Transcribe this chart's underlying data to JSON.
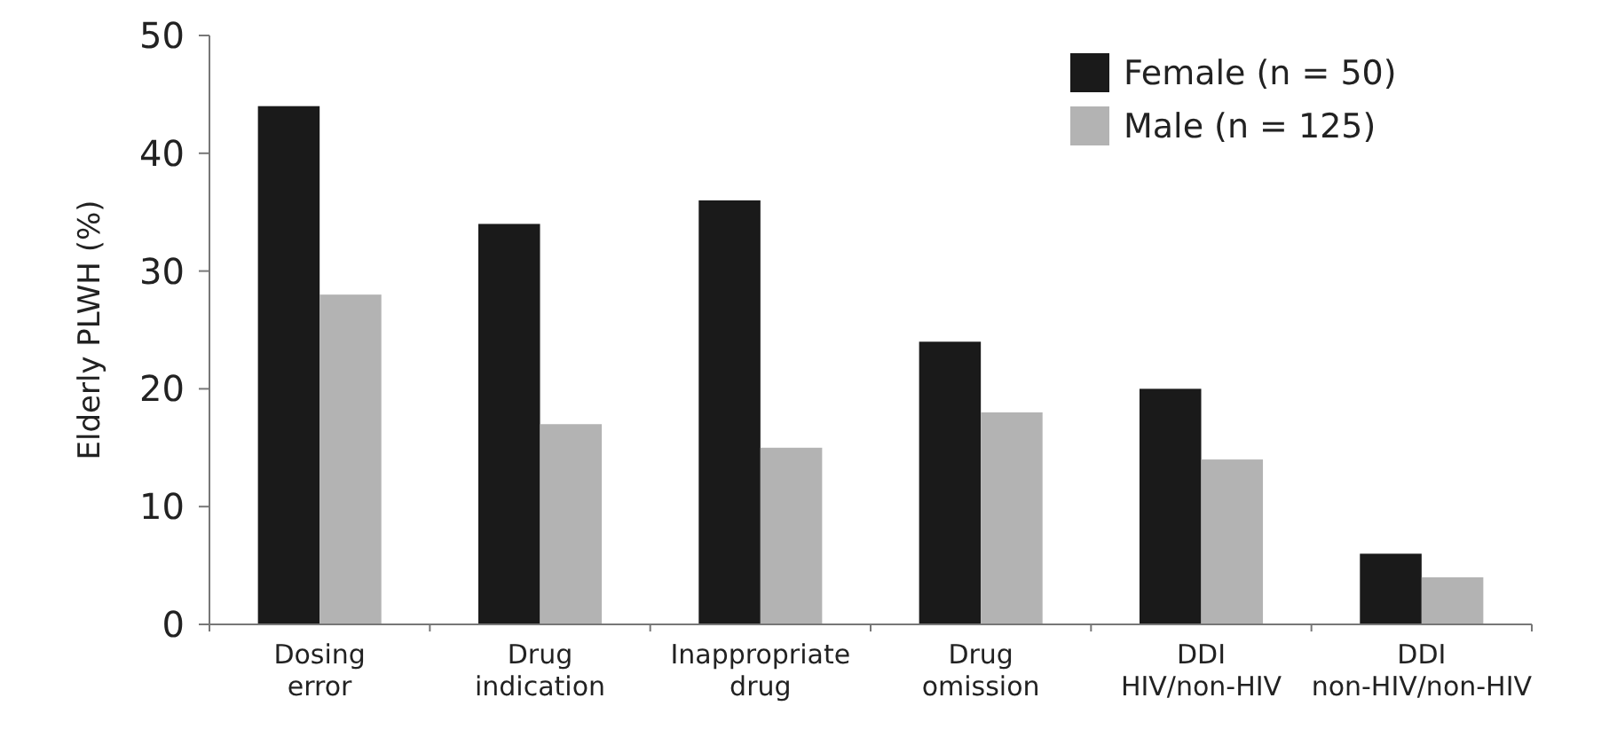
{
  "chart_data": {
    "type": "bar",
    "ylabel": "Elderly PLWH (%)",
    "categories": [
      "Dosing error",
      "Drug indication",
      "Inappropriate drug",
      "Drug omission",
      "DDI HIV/non-HIV",
      "DDI non-HIV/non-HIV"
    ],
    "series": [
      {
        "name": "Female (n = 50)",
        "color": "#1a1a1a",
        "values": [
          44,
          34,
          36,
          24,
          20,
          6
        ]
      },
      {
        "name": "Male (n = 125)",
        "color": "#b3b3b3",
        "values": [
          28,
          17,
          15,
          18,
          14,
          4
        ]
      }
    ],
    "ylim": [
      0,
      50
    ],
    "yticks": [
      0,
      10,
      20,
      30,
      40,
      50
    ],
    "legend": "top right",
    "grid": false
  }
}
